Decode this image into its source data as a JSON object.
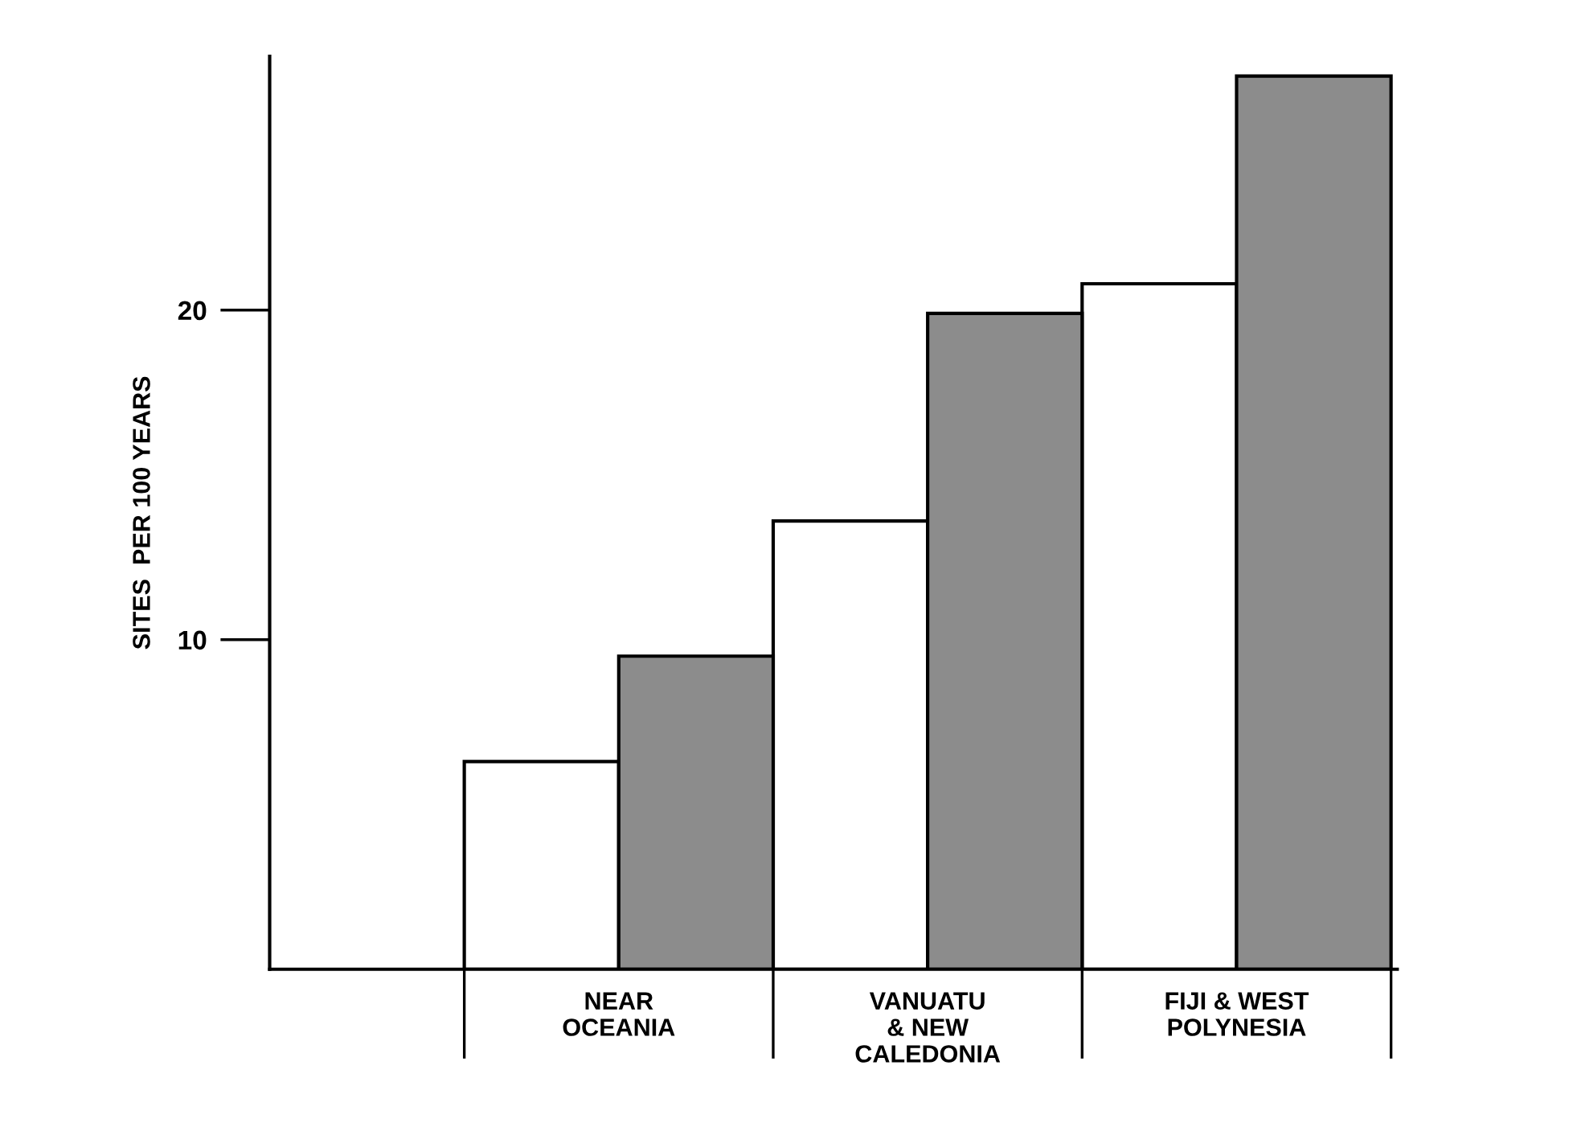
{
  "chart_data": {
    "type": "bar",
    "ylabel": "SITES  PER 100 YEARS",
    "categories": [
      "NEAR\nOCEANIA",
      "VANUATU\n& NEW\nCALEDONIA",
      "FIJI & WEST\nPOLYNESIA"
    ],
    "series": [
      {
        "color": "#ffffff",
        "values": [
          6.3,
          13.6,
          20.8
        ]
      },
      {
        "color": "#8c8c8c",
        "values": [
          9.5,
          19.9,
          27.1
        ]
      }
    ],
    "ylim": [
      0,
      27.7
    ],
    "yticks": [
      10,
      20
    ],
    "grid": false,
    "legend": false
  }
}
